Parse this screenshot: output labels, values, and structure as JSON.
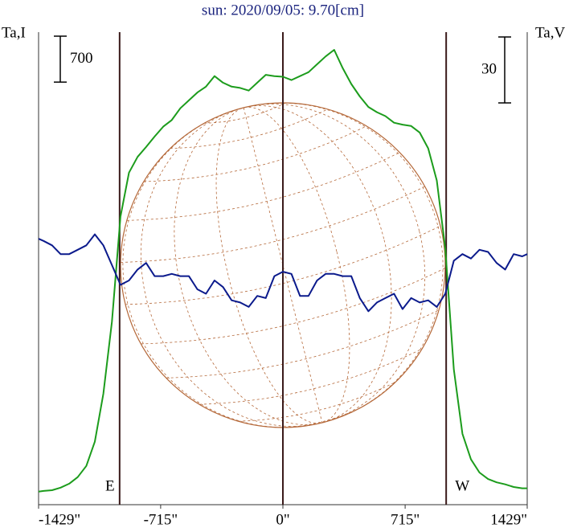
{
  "chart_data": {
    "type": "line",
    "title": "sun: 2020/09/05: 9.70[cm]",
    "ylabel": "Ta,I",
    "y2label": "Ta,V",
    "x": [
      -1429,
      -1400,
      -1350,
      -1300,
      -1250,
      -1200,
      -1150,
      -1100,
      -1050,
      -1000,
      -950,
      -900,
      -850,
      -800,
      -750,
      -700,
      -650,
      -600,
      -550,
      -500,
      -450,
      -400,
      -350,
      -300,
      -250,
      -200,
      -150,
      -100,
      -50,
      0,
      50,
      100,
      150,
      200,
      250,
      300,
      350,
      400,
      450,
      500,
      550,
      600,
      650,
      700,
      750,
      800,
      850,
      900,
      950,
      1000,
      1050,
      1100,
      1150,
      1200,
      1250,
      1300,
      1350,
      1400,
      1429
    ],
    "series": [
      {
        "name": "Ta,I",
        "color": "#1c9c1c",
        "values": [
          200,
          210,
          220,
          260,
          320,
          420,
          590,
          960,
          1690,
          2790,
          4390,
          5060,
          5300,
          5450,
          5610,
          5760,
          5860,
          6040,
          6160,
          6280,
          6370,
          6530,
          6430,
          6370,
          6350,
          6310,
          6430,
          6550,
          6530,
          6520,
          6470,
          6530,
          6590,
          6710,
          6830,
          6930,
          6650,
          6410,
          6220,
          6060,
          5980,
          5920,
          5820,
          5790,
          5770,
          5670,
          5430,
          4940,
          3900,
          2060,
          1080,
          690,
          490,
          390,
          340,
          310,
          270,
          250,
          250
        ]
      },
      {
        "name": "Ta,V",
        "color": "#0b1a8c",
        "axis": "y2",
        "values": [
          121,
          120,
          118,
          114,
          114,
          116,
          118,
          123,
          118,
          109,
          100,
          102,
          107,
          110,
          104,
          104,
          105,
          104,
          104,
          98,
          96,
          102,
          99,
          93,
          92,
          90,
          95,
          94,
          104,
          106,
          105,
          95,
          95,
          102,
          105,
          105,
          104,
          104,
          94,
          88,
          92,
          94,
          96,
          89,
          94,
          92,
          93,
          90,
          96,
          111,
          114,
          112,
          116,
          115,
          110,
          107,
          114,
          113,
          114
        ]
      }
    ],
    "xlim": [
      -1429,
      1429
    ],
    "xticks": [
      {
        "value": -1429,
        "label": "-1429\""
      },
      {
        "value": -715,
        "label": "-715\""
      },
      {
        "value": 0,
        "label": "0\""
      },
      {
        "value": 715,
        "label": "715\""
      },
      {
        "value": 1429,
        "label": "1429\""
      }
    ],
    "ylim": [
      0,
      7200
    ],
    "y2lim": [
      0,
      215
    ],
    "scale_bars": [
      {
        "value": 700,
        "axis": "y"
      },
      {
        "value": 30,
        "axis": "y2"
      }
    ],
    "limbs": [
      {
        "x": -955,
        "label": "E"
      },
      {
        "x": 0
      },
      {
        "x": 955,
        "label": "W"
      }
    ]
  }
}
